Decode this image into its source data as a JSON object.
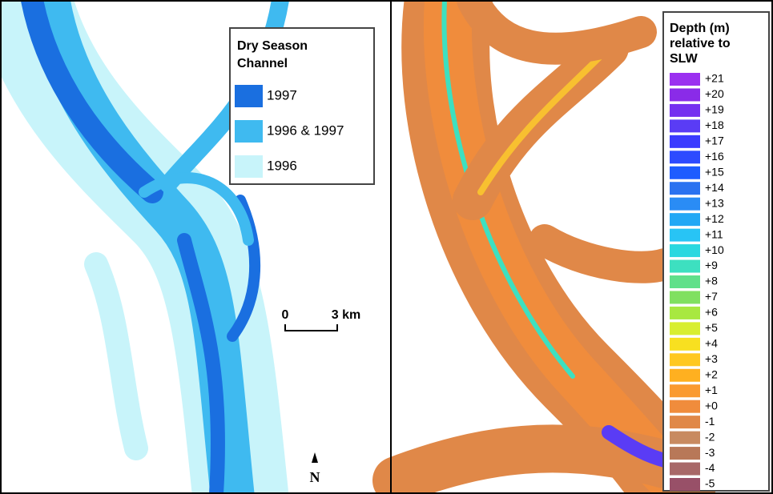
{
  "left_panel": {
    "legend": {
      "title": [
        "Dry Season",
        "Channel"
      ],
      "entries": [
        {
          "label": "1997",
          "color": "#1a6fe0"
        },
        {
          "label": "1996 & 1997",
          "color": "#3fbaf0"
        },
        {
          "label": "1996",
          "color": "#c8f4fa"
        }
      ]
    },
    "scale_bar": {
      "start": "0",
      "end": "3 km"
    },
    "north": "N"
  },
  "right_panel": {
    "legend": {
      "title": [
        "Depth (m)",
        "relative to",
        "SLW"
      ],
      "entries": [
        {
          "label": "+21",
          "color": "#9b30f0"
        },
        {
          "label": "+20",
          "color": "#8a2be8"
        },
        {
          "label": "+19",
          "color": "#7530f0"
        },
        {
          "label": "+18",
          "color": "#5a3cf5"
        },
        {
          "label": "+17",
          "color": "#3b3bff"
        },
        {
          "label": "+16",
          "color": "#2d4bff"
        },
        {
          "label": "+15",
          "color": "#1e5cff"
        },
        {
          "label": "+14",
          "color": "#2a72f0"
        },
        {
          "label": "+13",
          "color": "#2a8cf5"
        },
        {
          "label": "+12",
          "color": "#22a8f5"
        },
        {
          "label": "+11",
          "color": "#28c4f5"
        },
        {
          "label": "+10",
          "color": "#2ad8e0"
        },
        {
          "label": "+9",
          "color": "#3de0c0"
        },
        {
          "label": "+8",
          "color": "#60e08a"
        },
        {
          "label": "+7",
          "color": "#80e060"
        },
        {
          "label": "+6",
          "color": "#a8e840"
        },
        {
          "label": "+5",
          "color": "#d8ee30"
        },
        {
          "label": "+4",
          "color": "#f8e020"
        },
        {
          "label": "+3",
          "color": "#ffc820"
        },
        {
          "label": "+2",
          "color": "#ffb020"
        },
        {
          "label": "+1",
          "color": "#fa9a30"
        },
        {
          "label": "+0",
          "color": "#f08c3c"
        },
        {
          "label": "-1",
          "color": "#e08848"
        },
        {
          "label": "-2",
          "color": "#c88a60"
        },
        {
          "label": "-3",
          "color": "#b87858"
        },
        {
          "label": "-4",
          "color": "#a86868"
        },
        {
          "label": "-5",
          "color": "#985068"
        }
      ]
    }
  }
}
